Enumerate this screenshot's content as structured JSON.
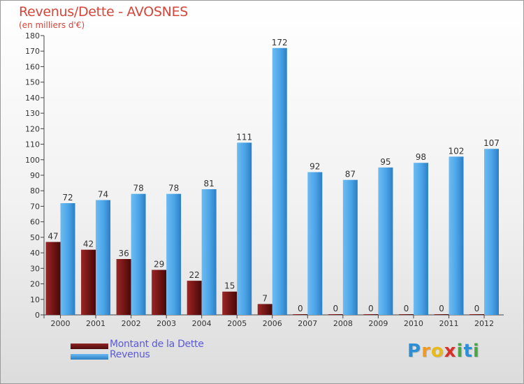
{
  "chart_data": {
    "type": "bar",
    "title": "Revenus/Dette - AVOSNES",
    "subtitle": "(en milliers d'€)",
    "xlabel": "",
    "ylabel": "",
    "ylim": [
      0,
      180
    ],
    "yticks": [
      0,
      10,
      20,
      30,
      40,
      50,
      60,
      70,
      80,
      90,
      100,
      110,
      120,
      130,
      140,
      150,
      160,
      170,
      180
    ],
    "categories": [
      "2000",
      "2001",
      "2002",
      "2003",
      "2004",
      "2005",
      "2006",
      "2007",
      "2008",
      "2009",
      "2010",
      "2011",
      "2012"
    ],
    "series": [
      {
        "name": "Montant de la Dette",
        "color": "#7a1a1a",
        "values": [
          47,
          42,
          36,
          29,
          22,
          15,
          7,
          0,
          0,
          0,
          0,
          0,
          0
        ]
      },
      {
        "name": "Revenus",
        "color": "#4aa3e6",
        "values": [
          72,
          74,
          78,
          78,
          81,
          111,
          172,
          92,
          87,
          95,
          98,
          102,
          107
        ]
      }
    ],
    "legend": "bottom-left",
    "grid": false
  },
  "brand": {
    "letters": [
      "P",
      "r",
      "o",
      "x",
      "i",
      "t",
      "i"
    ],
    "colors": [
      "#2c8fd6",
      "#f39a1d",
      "#e8b91a",
      "#d9302b",
      "#47a845",
      "#2c8fd6",
      "#47a845"
    ]
  }
}
